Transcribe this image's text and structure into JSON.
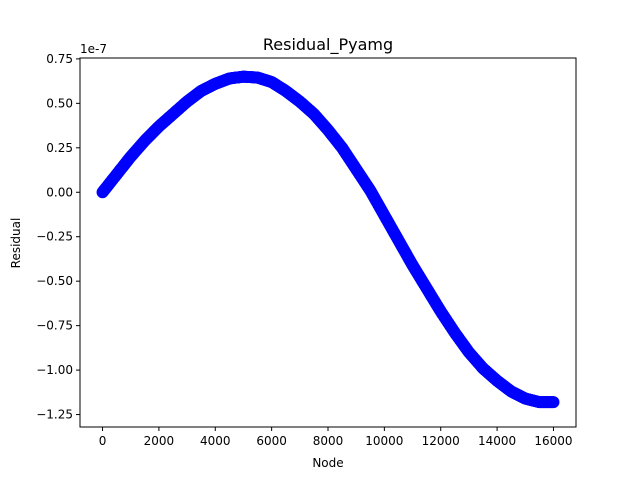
{
  "chart_data": {
    "type": "scatter",
    "title": "Residual_Pyamg",
    "xlabel": "Node",
    "ylabel": "Residual",
    "y_scale_label": "1e-7",
    "xlim": [
      -800,
      16800
    ],
    "ylim": [
      -1.32,
      0.755
    ],
    "x_ticks": [
      0,
      2000,
      4000,
      6000,
      8000,
      10000,
      12000,
      14000,
      16000
    ],
    "x_tick_labels": [
      "0",
      "2000",
      "4000",
      "6000",
      "8000",
      "10000",
      "12000",
      "14000",
      "16000"
    ],
    "y_ticks": [
      -1.25,
      -1.0,
      -0.75,
      -0.5,
      -0.25,
      0.0,
      0.25,
      0.5,
      0.75
    ],
    "y_tick_labels": [
      "−1.25",
      "−1.00",
      "−0.75",
      "−0.50",
      "−0.25",
      "0.00",
      "0.25",
      "0.50",
      "0.75"
    ],
    "grid": false,
    "marker_color": "#0000ff",
    "series": [
      {
        "x": [
          0,
          500,
          1000,
          1500,
          2000,
          2500,
          3000,
          3500,
          4000,
          4500,
          5000,
          5500,
          6000,
          6500,
          7000,
          7500,
          8000,
          8500,
          9000,
          9500,
          10000,
          10500,
          11000,
          11500,
          12000,
          12500,
          13000,
          13500,
          14000,
          14500,
          15000,
          15500,
          16000
        ],
        "y": [
          0.0,
          0.1,
          0.2,
          0.29,
          0.37,
          0.44,
          0.51,
          0.57,
          0.61,
          0.64,
          0.65,
          0.645,
          0.62,
          0.57,
          0.51,
          0.44,
          0.35,
          0.25,
          0.13,
          0.01,
          -0.13,
          -0.27,
          -0.41,
          -0.54,
          -0.67,
          -0.79,
          -0.9,
          -0.99,
          -1.06,
          -1.12,
          -1.16,
          -1.18,
          -1.18
        ]
      }
    ]
  }
}
